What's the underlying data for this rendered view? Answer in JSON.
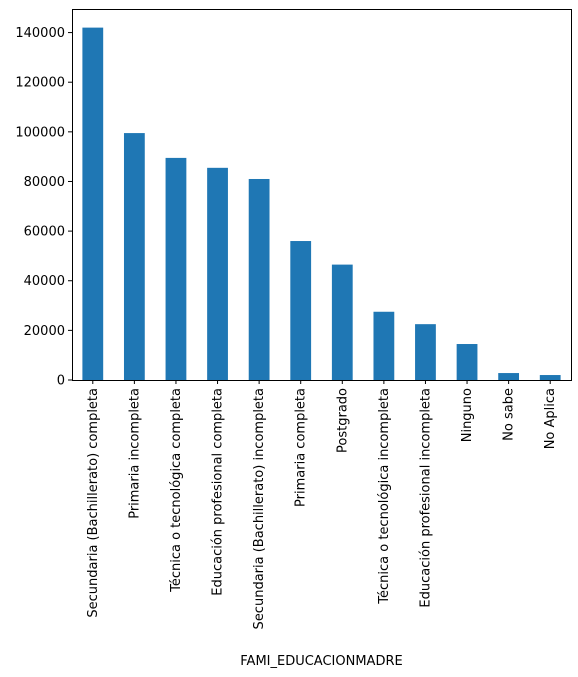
{
  "chart_data": {
    "type": "bar",
    "title": "",
    "xlabel": "FAMI_EDUCACIONMADRE",
    "ylabel": "",
    "categories": [
      "Secundaria (Bachillerato) completa",
      "Primaria incompleta",
      "Técnica o tecnológica completa",
      "Educación profesional completa",
      "Secundaria (Bachillerato) incompleta",
      "Primaria completa",
      "Postgrado",
      "Técnica o tecnológica incompleta",
      "Educación profesional incompleta",
      "Ninguno",
      "No sabe",
      "No Aplica"
    ],
    "values": [
      142000,
      99500,
      89500,
      85500,
      81000,
      56000,
      46500,
      27500,
      22500,
      14500,
      2800,
      2000
    ],
    "ylim": [
      0,
      149500
    ],
    "yticks": [
      0,
      20000,
      40000,
      60000,
      80000,
      100000,
      120000,
      140000
    ],
    "bar_color": "#1f77b4",
    "grid": false,
    "legend": "none"
  }
}
